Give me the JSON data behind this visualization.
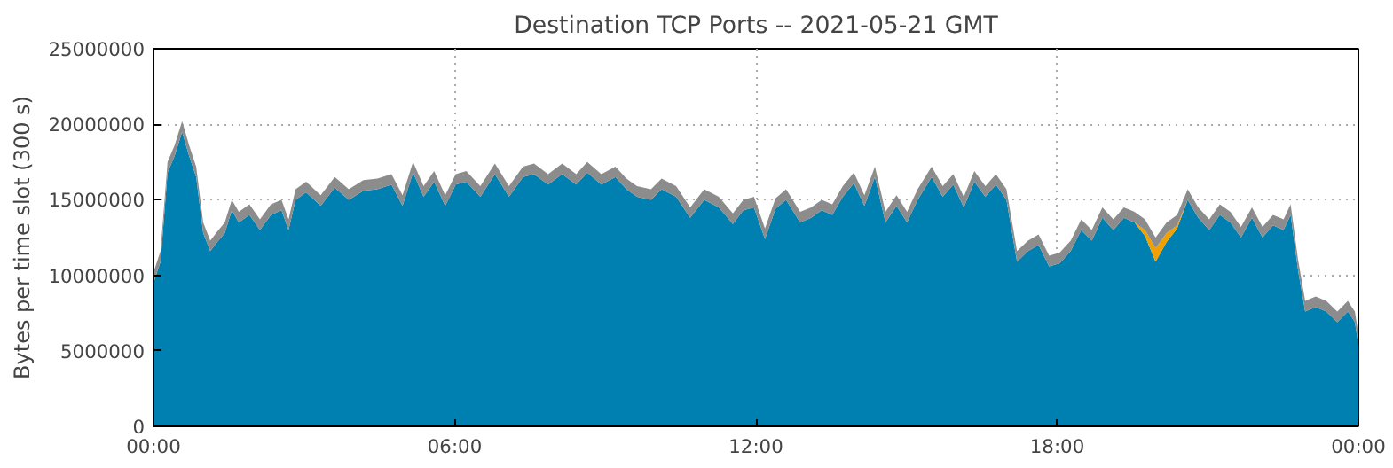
{
  "chart_data": {
    "type": "area",
    "title": "Destination TCP Ports -- 2021-05-21 GMT",
    "ylabel": "Bytes per time slot (300 s)",
    "stacked": true,
    "grid": true,
    "xlim": [
      0,
      24
    ],
    "xticks": [
      {
        "value": 0,
        "label": "00:00"
      },
      {
        "value": 6,
        "label": "06:00"
      },
      {
        "value": 12,
        "label": "12:00"
      },
      {
        "value": 18,
        "label": "18:00"
      },
      {
        "value": 24,
        "label": "00:00"
      }
    ],
    "ylim": [
      0,
      25000000
    ],
    "yticks": [
      0,
      5000000,
      10000000,
      15000000,
      20000000,
      25000000
    ],
    "x": [
      0,
      0.14,
      0.28,
      0.42,
      0.57,
      0.71,
      0.85,
      0.99,
      1.13,
      1.27,
      1.42,
      1.56,
      1.7,
      1.91,
      2.12,
      2.34,
      2.55,
      2.69,
      2.83,
      3.04,
      3.33,
      3.61,
      3.89,
      4.18,
      4.46,
      4.74,
      4.96,
      5.17,
      5.38,
      5.59,
      5.81,
      6.02,
      6.23,
      6.51,
      6.8,
      7.08,
      7.36,
      7.58,
      7.86,
      8.14,
      8.42,
      8.64,
      8.92,
      9.2,
      9.42,
      9.63,
      9.91,
      10.12,
      10.41,
      10.69,
      10.97,
      11.26,
      11.54,
      11.75,
      11.96,
      12.18,
      12.39,
      12.6,
      12.88,
      13.1,
      13.31,
      13.52,
      13.73,
      13.95,
      14.16,
      14.37,
      14.58,
      14.8,
      15.01,
      15.22,
      15.5,
      15.72,
      15.93,
      16.14,
      16.35,
      16.57,
      16.78,
      16.99,
      17.2,
      17.42,
      17.63,
      17.84,
      18.05,
      18.27,
      18.48,
      18.69,
      18.9,
      19.12,
      19.33,
      19.54,
      19.75,
      19.96,
      20.18,
      20.39,
      20.6,
      20.81,
      21.03,
      21.24,
      21.45,
      21.66,
      21.88,
      22.09,
      22.3,
      22.51,
      22.65,
      22.8,
      22.94,
      23.15,
      23.36,
      23.58,
      23.79,
      23.93,
      24
    ],
    "series": [
      {
        "color": "#0080b0",
        "values": [
          9500000,
          10900000,
          16800000,
          17900000,
          19500000,
          17900000,
          16500000,
          12800000,
          11600000,
          12200000,
          12800000,
          14300000,
          13500000,
          14000000,
          13000000,
          14000000,
          14300000,
          13000000,
          15000000,
          15500000,
          14600000,
          15800000,
          15000000,
          15600000,
          15700000,
          16000000,
          14600000,
          16800000,
          15200000,
          16200000,
          14600000,
          16000000,
          16200000,
          15200000,
          16700000,
          15200000,
          16500000,
          16700000,
          16000000,
          16700000,
          16000000,
          16800000,
          16000000,
          16500000,
          15700000,
          15200000,
          15000000,
          15700000,
          15200000,
          13800000,
          15000000,
          14500000,
          13400000,
          14300000,
          14500000,
          12400000,
          14400000,
          15000000,
          13500000,
          13800000,
          14300000,
          14000000,
          15200000,
          16100000,
          14600000,
          16500000,
          13500000,
          14600000,
          13500000,
          15000000,
          16500000,
          15200000,
          16000000,
          14500000,
          16200000,
          15200000,
          16000000,
          15000000,
          10900000,
          11600000,
          12000000,
          10600000,
          10800000,
          11600000,
          13000000,
          12300000,
          13800000,
          13000000,
          13800000,
          13500000,
          12600000,
          10900000,
          12200000,
          13100000,
          15000000,
          13800000,
          13000000,
          14000000,
          13500000,
          12500000,
          13800000,
          12500000,
          13300000,
          13000000,
          14000000,
          10300000,
          7600000,
          7900000,
          7600000,
          6900000,
          7600000,
          6900000,
          5400000
        ]
      },
      {
        "color": "#f0a000",
        "values": [
          0,
          0,
          0,
          0,
          0,
          0,
          0,
          0,
          0,
          0,
          0,
          0,
          0,
          0,
          0,
          0,
          0,
          0,
          0,
          0,
          0,
          0,
          0,
          0,
          0,
          0,
          0,
          0,
          0,
          0,
          0,
          0,
          0,
          0,
          0,
          0,
          0,
          0,
          0,
          0,
          0,
          0,
          0,
          0,
          0,
          0,
          0,
          0,
          0,
          0,
          0,
          0,
          0,
          0,
          0,
          0,
          0,
          0,
          0,
          0,
          0,
          0,
          0,
          0,
          0,
          0,
          0,
          0,
          0,
          0,
          0,
          0,
          0,
          0,
          0,
          0,
          0,
          0,
          0,
          0,
          0,
          0,
          0,
          0,
          0,
          0,
          0,
          0,
          0,
          0,
          400000,
          900000,
          600000,
          200000,
          0,
          0,
          0,
          0,
          0,
          0,
          0,
          0,
          0,
          0,
          0,
          0,
          0,
          0,
          0,
          0,
          0,
          0,
          0
        ]
      },
      {
        "color": "#8c8c8c",
        "values": [
          700000,
          700000,
          700000,
          700000,
          700000,
          700000,
          700000,
          700000,
          700000,
          700000,
          700000,
          700000,
          700000,
          700000,
          700000,
          700000,
          700000,
          700000,
          700000,
          700000,
          700000,
          700000,
          700000,
          700000,
          700000,
          700000,
          700000,
          700000,
          700000,
          700000,
          700000,
          700000,
          700000,
          700000,
          700000,
          700000,
          700000,
          700000,
          700000,
          700000,
          700000,
          700000,
          700000,
          700000,
          700000,
          700000,
          700000,
          700000,
          700000,
          700000,
          700000,
          700000,
          700000,
          700000,
          700000,
          700000,
          700000,
          700000,
          700000,
          700000,
          700000,
          700000,
          700000,
          700000,
          700000,
          700000,
          700000,
          700000,
          700000,
          700000,
          700000,
          700000,
          700000,
          700000,
          700000,
          700000,
          700000,
          700000,
          700000,
          700000,
          700000,
          700000,
          700000,
          700000,
          700000,
          700000,
          700000,
          700000,
          700000,
          700000,
          700000,
          700000,
          700000,
          700000,
          700000,
          700000,
          700000,
          700000,
          700000,
          700000,
          700000,
          700000,
          700000,
          700000,
          700000,
          700000,
          700000,
          700000,
          700000,
          700000,
          700000,
          700000,
          700000
        ]
      }
    ]
  }
}
